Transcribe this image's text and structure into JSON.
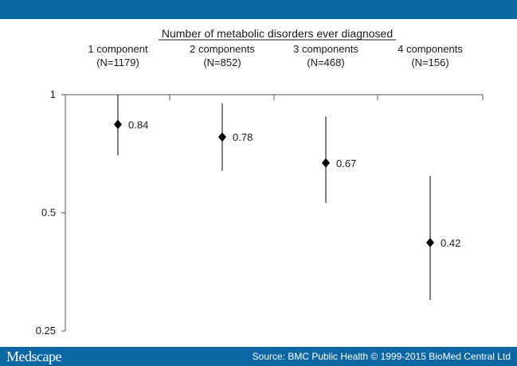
{
  "footer": {
    "logo": "Medscape",
    "source": "Source: BMC Public Health © 1999-2015 BioMed Central Ltd"
  },
  "colors": {
    "bar": "#0a67a4",
    "marker": "#000000"
  },
  "chart_data": {
    "type": "scatter",
    "title": "Number of metabolic disorders ever diagnosed",
    "y_scale": "log",
    "ylim": [
      0.25,
      1
    ],
    "y_ticks": [
      1,
      0.5,
      0.25
    ],
    "y_tick_labels": [
      "1",
      "0.5",
      "0.25"
    ],
    "categories": [
      {
        "line1": "1 component",
        "line2": "(N=1179)"
      },
      {
        "line1": "2 components",
        "line2": "(N=852)"
      },
      {
        "line1": "3 components",
        "line2": "(N=468)"
      },
      {
        "line1": "4 components",
        "line2": "(N=156)"
      }
    ],
    "values": [
      0.84,
      0.78,
      0.67,
      0.42
    ],
    "value_labels": [
      "0.84",
      "0.78",
      "0.67",
      "0.42"
    ],
    "ci_lower": [
      0.7,
      0.64,
      0.53,
      0.3
    ],
    "ci_upper": [
      1.0,
      0.95,
      0.88,
      0.62
    ],
    "grid": false
  }
}
